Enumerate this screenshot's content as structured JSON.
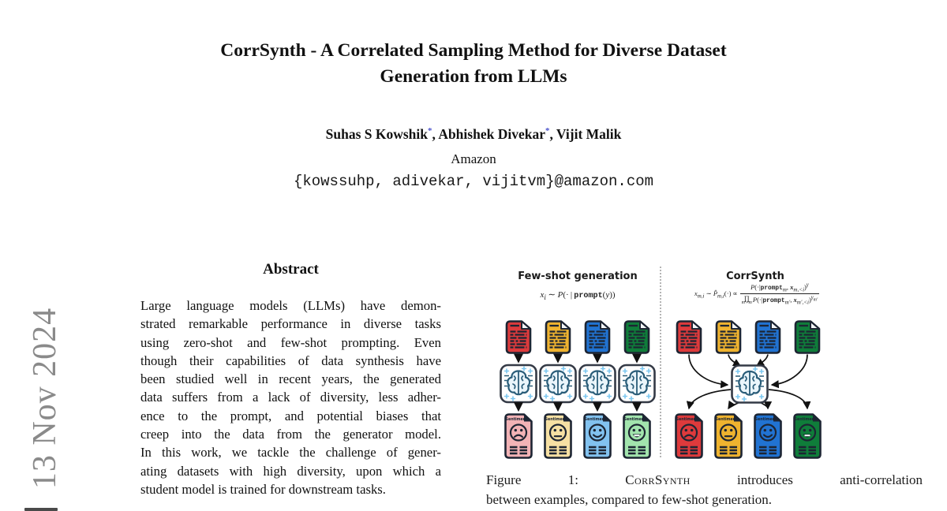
{
  "stamp": {
    "date": "13 Nov 2024"
  },
  "header": {
    "title_line1": "CorrSynth - A Correlated Sampling Method for Diverse Dataset",
    "title_line2": "Generation from LLMs",
    "authors": [
      {
        "name": "Suhas S Kowshik",
        "mark": "*"
      },
      {
        "name": "Abhishek Divekar",
        "mark": "*"
      },
      {
        "name": "Vijit Malik",
        "mark": ""
      }
    ],
    "affiliation": "Amazon",
    "email": "{kowssuhp, adivekar, vijitvm}@amazon.com"
  },
  "abstract": {
    "heading": "Abstract",
    "lines": [
      "Large language models (LLMs) have demon-",
      "strated remarkable performance in diverse tasks",
      "using zero-shot and few-shot prompting. Even",
      "though their capabilities of data synthesis have",
      "been studied well in recent years, the generated",
      "data suffers from a lack of diversity, less adher-",
      "ence to the prompt, and potential biases that",
      "creep into the data from the generator model.",
      "In this work, we tackle the challenge of gener-",
      "ating datasets with high diversity, upon which a",
      "student model is trained for downstream tasks."
    ]
  },
  "figure": {
    "card_label": "Sentiment",
    "left_panel": {
      "title": "Few-shot generation",
      "formula_html": "<i>x</i><sub><i>i</i></sub> ∼ <i>P</i>(· | <span class='tt'>prompt</span>(<i>y</i>))",
      "doc_colors": [
        "#dd3a3c",
        "#efb32f",
        "#2173d2",
        "#0f7d3a"
      ],
      "card_colors": [
        "#f2b3b6",
        "#f6e0a3",
        "#82c2ef",
        "#a2e4ad"
      ],
      "faces": [
        "sad",
        "neutral",
        "smile",
        "grin"
      ]
    },
    "right_panel": {
      "title": "CorrSynth",
      "formula_lhs_html": "<i>x</i><sub><i>m,i</i></sub> ∼ <i>P̂</i><sub><i>m,i</i></sub>(·) ∝",
      "formula_num_html": "<i>P</i>(·|<span class='tt'>prompt</span><sub><i>m</i></sub>, <b><i>x</i></b><sub><i>m,&lt;i</i></sub>)<sup><i>γ</i></sup>",
      "formula_den_html": "<span class='pw'>∏<span class='pb'>m′≠m</span></span><i>P</i>(·|<span class='tt'>prompt</span><sub><i>m′</i></sub>, <b><i>x</i></b><sub><i>m′,&lt;i</i></sub>)<sup><i>γ</i><sub><i>m′</i></sub></sup>",
      "doc_colors": [
        "#dd3a3c",
        "#efb32f",
        "#2173d2",
        "#0f7d3a"
      ],
      "card_colors": [
        "#dd3a3c",
        "#efb32f",
        "#2173d2",
        "#0f7d3a"
      ],
      "faces": [
        "sad",
        "neutral",
        "smile",
        "grin"
      ]
    },
    "caption_line1_html": "Figure 1: <span class='sc'>CorrSynth</span> introduces anti-correlation",
    "caption_line2": "between examples, compared to few-shot generation."
  },
  "colors": {
    "stroke": "#1d2533",
    "brain_line": "#2a5d79",
    "brain_fill": "#eaf5fb",
    "sparkle": "#7cc7f0",
    "arrow": "#111111",
    "asterisk": "#4d55cc",
    "stamp_gray": "#8a8a8a"
  }
}
